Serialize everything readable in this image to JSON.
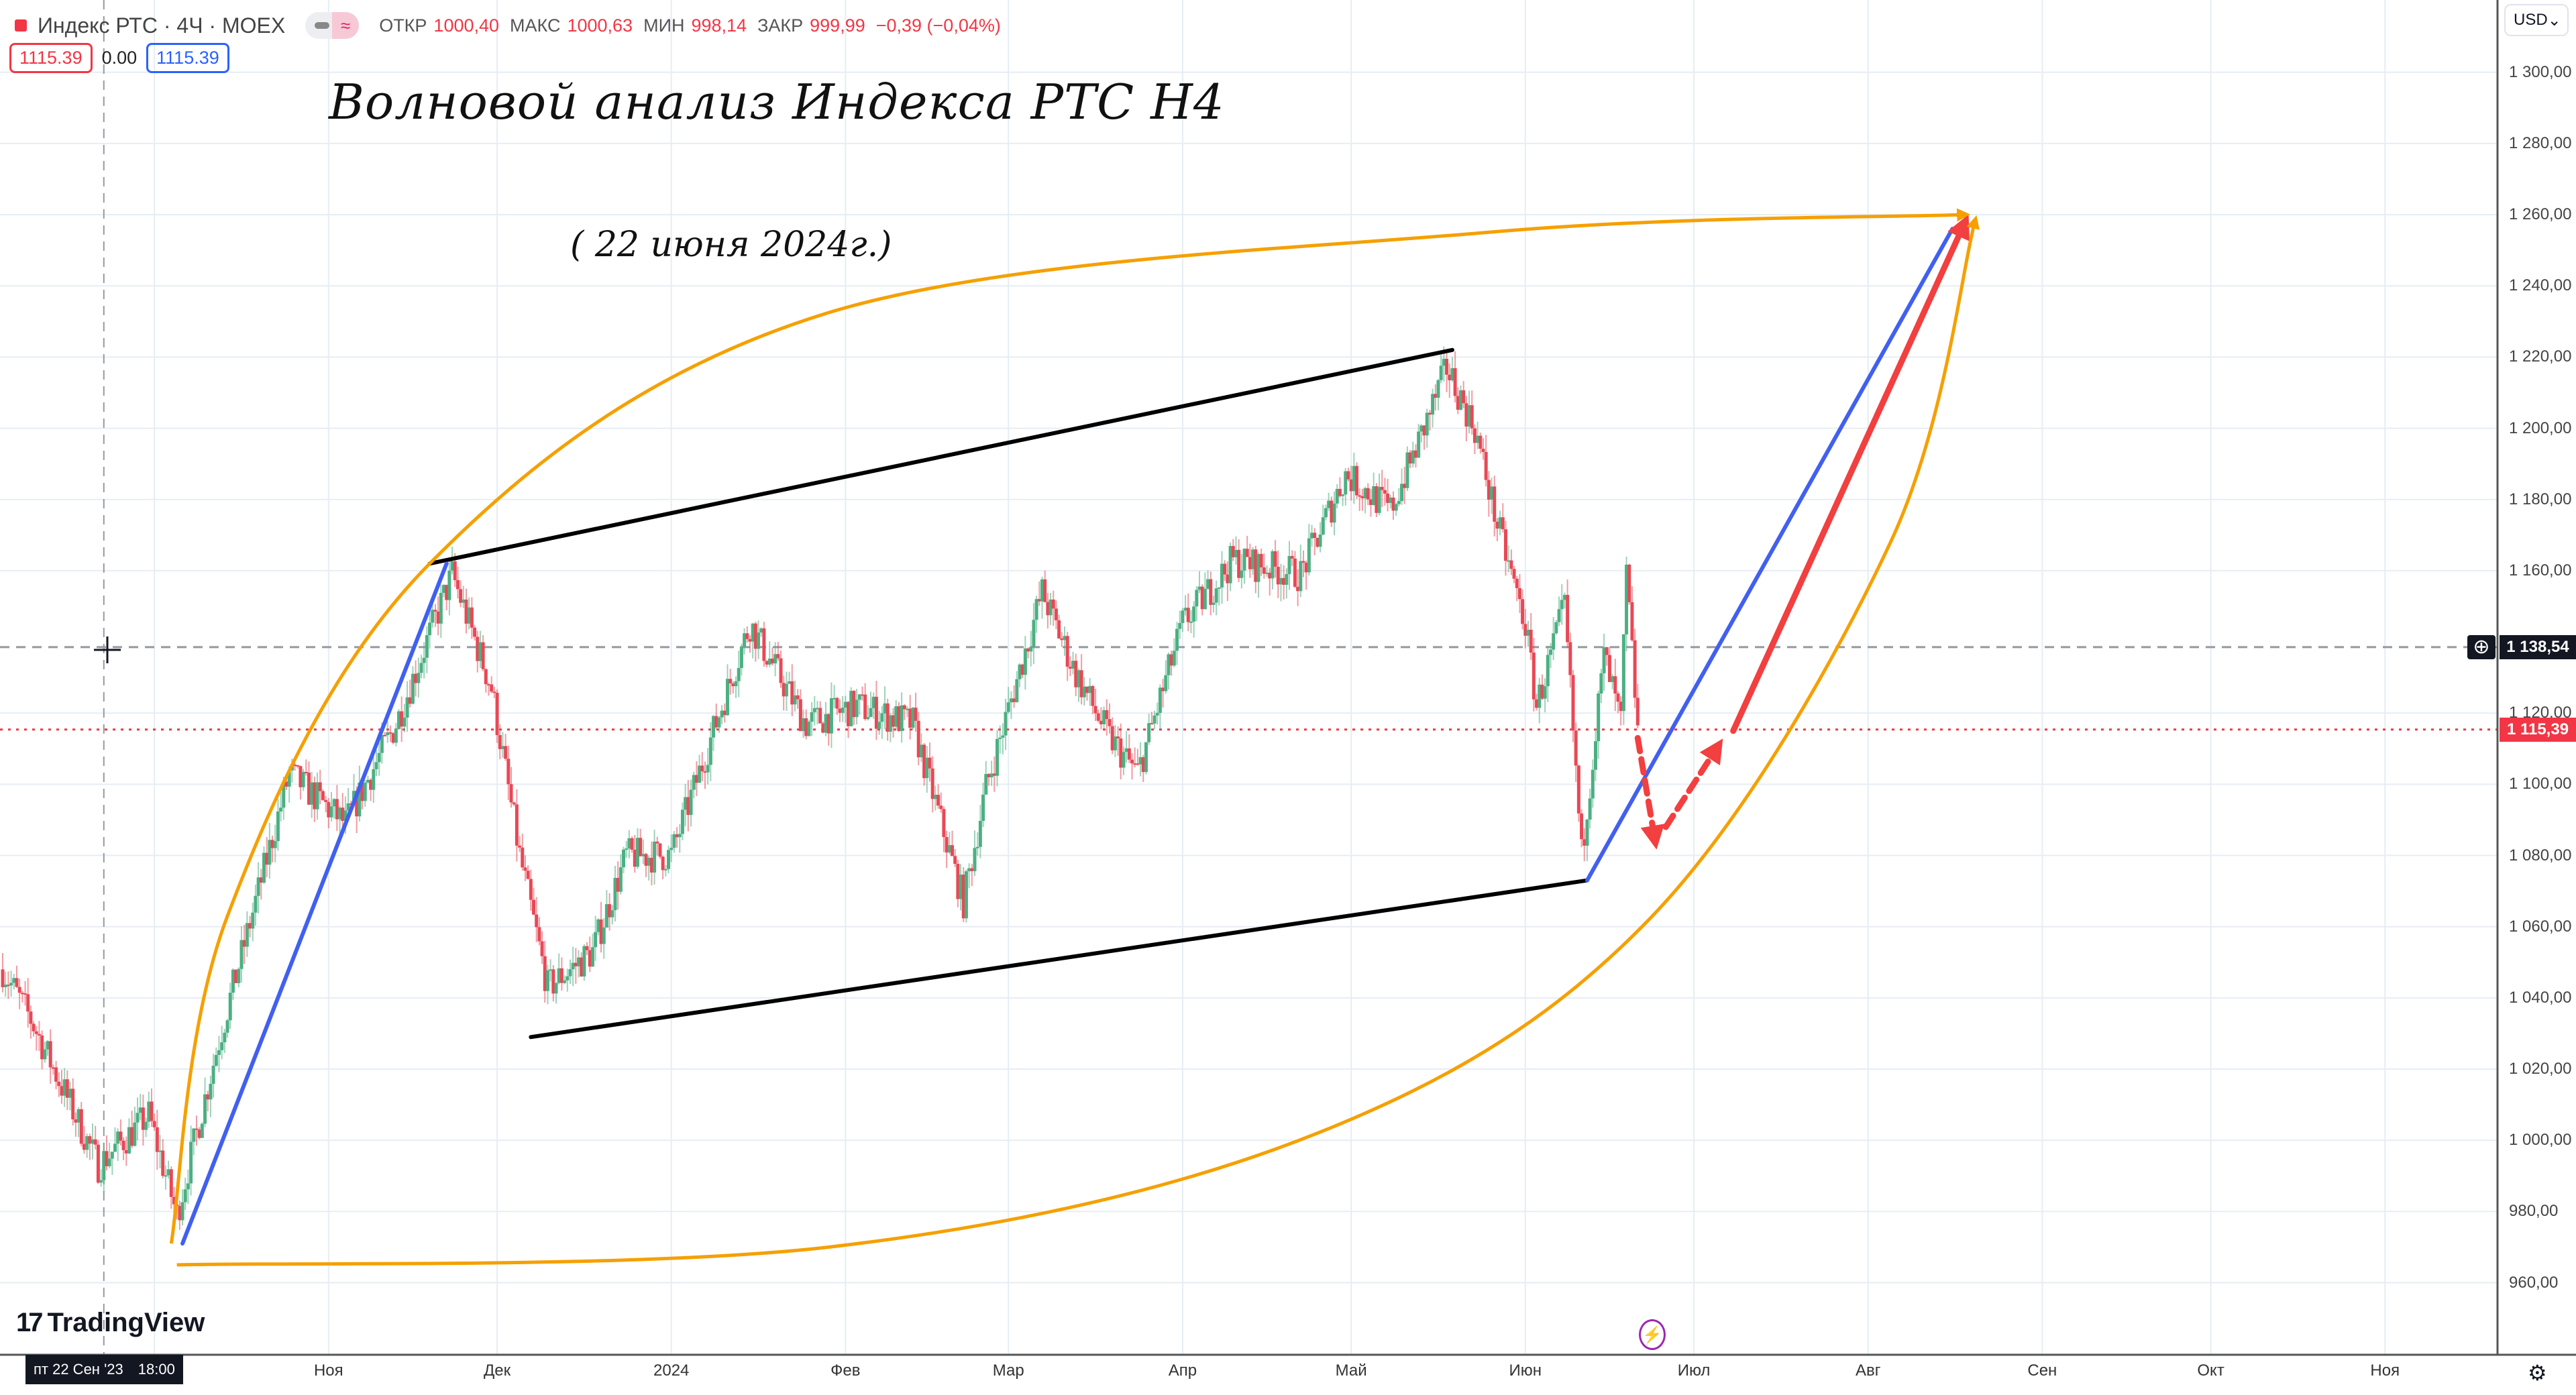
{
  "legend": {
    "symbol": "Индекс РТС · 4Ч · MOEX",
    "ohlc": [
      {
        "key": "ОТКР",
        "value": "1000,40"
      },
      {
        "key": "МАКС",
        "value": "1000,63"
      },
      {
        "key": "МИН",
        "value": "998,14"
      },
      {
        "key": "ЗАКР",
        "value": "999,99"
      }
    ],
    "change": "−0,39 (−0,04%)",
    "bid": "1115.39",
    "spread": "0.00",
    "ask": "1115.39",
    "wave_icon": "≈"
  },
  "annotations": {
    "title": "Волновой анализ Индекса РТС Н4",
    "date": "(  22 июня 2024г.)"
  },
  "currency": "USD",
  "logo": "TradingView",
  "crosshair": {
    "price_label": "1 138,54",
    "time_label_day": "пт 22 Сен '23",
    "time_label_time": "18:00"
  },
  "last_price_label": "1 115,39",
  "colors": {
    "up": "#4caf82",
    "down": "#e84855",
    "channel": "#000000",
    "impulse": "#4160f0",
    "target": "#f23f3f",
    "arc": "#f5a000",
    "last": "#f23645"
  },
  "chart_data": {
    "type": "candlestick",
    "y_ticks": [
      "1 300,00",
      "1 280,00",
      "1 260,00",
      "1 240,00",
      "1 220,00",
      "1 200,00",
      "1 180,00",
      "1 160,00",
      "1 120,00",
      "1 100,00",
      "1 080,00",
      "1 060,00",
      "1 040,00",
      "1 020,00",
      "1 000,00",
      "980,00",
      "960,00"
    ],
    "y_tick_values": [
      1300,
      1280,
      1260,
      1240,
      1220,
      1200,
      1180,
      1160,
      1120,
      1100,
      1080,
      1060,
      1040,
      1020,
      1000,
      980,
      960
    ],
    "x_ticks": [
      {
        "label": "Ноя",
        "date": "2023-11-01"
      },
      {
        "label": "Дек",
        "date": "2023-12-01"
      },
      {
        "label": "2024",
        "date": "2024-01-01"
      },
      {
        "label": "Фев",
        "date": "2024-02-01"
      },
      {
        "label": "Мар",
        "date": "2024-03-01"
      },
      {
        "label": "Апр",
        "date": "2024-04-01"
      },
      {
        "label": "Май",
        "date": "2024-05-01"
      },
      {
        "label": "Июн",
        "date": "2024-06-01"
      },
      {
        "label": "Июл",
        "date": "2024-07-01"
      },
      {
        "label": "Авг",
        "date": "2024-08-01"
      },
      {
        "label": "Сен",
        "date": "2024-09-01"
      },
      {
        "label": "Окт",
        "date": "2024-10-01"
      },
      {
        "label": "Ноя",
        "date": "2024-11-01"
      }
    ],
    "ylim": [
      950,
      1310
    ],
    "price_path": [
      [
        "2023-09-04",
        1048
      ],
      [
        "2023-09-09",
        1034
      ],
      [
        "2023-09-21",
        993
      ],
      [
        "2023-09-30",
        1007
      ],
      [
        "2023-10-05",
        979
      ],
      [
        "2023-10-12",
        1025
      ],
      [
        "2023-10-25",
        1103
      ],
      [
        "2023-11-04",
        1089
      ],
      [
        "2023-11-13",
        1117
      ],
      [
        "2023-11-23",
        1159
      ],
      [
        "2023-11-30",
        1127
      ],
      [
        "2023-12-05",
        1080
      ],
      [
        "2023-12-10",
        1043
      ],
      [
        "2023-12-18",
        1053
      ],
      [
        "2023-12-24",
        1080
      ],
      [
        "2024-01-01",
        1080
      ],
      [
        "2024-01-10",
        1122
      ],
      [
        "2024-01-15",
        1145
      ],
      [
        "2024-01-25",
        1117
      ],
      [
        "2024-02-03",
        1122
      ],
      [
        "2024-02-13",
        1117
      ],
      [
        "2024-02-22",
        1067
      ],
      [
        "2024-02-26",
        1099
      ],
      [
        "2024-03-07",
        1154
      ],
      [
        "2024-03-13",
        1131
      ],
      [
        "2024-03-19",
        1113
      ],
      [
        "2024-03-24",
        1103
      ],
      [
        "2024-04-01",
        1145
      ],
      [
        "2024-04-10",
        1163
      ],
      [
        "2024-04-22",
        1159
      ],
      [
        "2024-04-30",
        1187
      ],
      [
        "2024-05-08",
        1177
      ],
      [
        "2024-05-13",
        1196
      ],
      [
        "2024-05-18",
        1217
      ],
      [
        "2024-05-23",
        1200
      ],
      [
        "2024-05-27",
        1173
      ],
      [
        "2024-06-01",
        1145
      ],
      [
        "2024-06-03",
        1122
      ],
      [
        "2024-06-08",
        1150
      ],
      [
        "2024-06-11",
        1080
      ],
      [
        "2024-06-15",
        1136
      ],
      [
        "2024-06-18",
        1117
      ],
      [
        "2024-06-19",
        1159
      ],
      [
        "2024-06-21",
        1115
      ]
    ],
    "horizontal_lines": [
      {
        "price": 1138.54,
        "style": "dashed"
      },
      {
        "price": 1115.39,
        "style": "dotted"
      }
    ],
    "crosshair_date": "2023-09-22",
    "drawings": [
      {
        "type": "trendline",
        "color": "channel",
        "points": [
          [
            "2023-11-19",
            1162
          ],
          [
            "2024-05-19",
            1222
          ]
        ]
      },
      {
        "type": "trendline",
        "color": "channel",
        "points": [
          [
            "2023-12-07",
            1029
          ],
          [
            "2024-06-12",
            1073
          ]
        ]
      },
      {
        "type": "trendline",
        "color": "impulse",
        "points": [
          [
            "2023-10-06",
            971
          ],
          [
            "2023-11-22",
            1162
          ]
        ]
      },
      {
        "type": "trendline",
        "color": "impulse",
        "points": [
          [
            "2024-06-12",
            1073
          ],
          [
            "2024-08-16",
            1256
          ]
        ]
      },
      {
        "type": "arrow",
        "color": "target",
        "points": [
          [
            "2024-07-08",
            1115
          ],
          [
            "2024-08-18",
            1257
          ]
        ]
      },
      {
        "type": "dashed-arrow",
        "color": "target",
        "points": [
          [
            "2024-06-21",
            1113
          ],
          [
            "2024-06-24",
            1085
          ]
        ]
      },
      {
        "type": "dashed-arrow",
        "color": "target",
        "points": [
          [
            "2024-06-26",
            1088
          ],
          [
            "2024-07-05",
            1110
          ]
        ]
      },
      {
        "type": "arc",
        "color": "arc",
        "points": [
          [
            "2023-10-04",
            971
          ],
          [
            "2023-10-14",
            1063
          ],
          [
            "2023-11-19",
            1162
          ],
          [
            "2024-01-28",
            1232
          ],
          [
            "2024-05-25",
            1255
          ],
          [
            "2024-08-18",
            1260
          ]
        ]
      },
      {
        "type": "arc",
        "color": "arc",
        "points": [
          [
            "2023-10-05",
            965
          ],
          [
            "2024-01-29",
            970
          ],
          [
            "2024-04-25",
            1002
          ],
          [
            "2024-06-23",
            1062
          ],
          [
            "2024-08-05",
            1168
          ],
          [
            "2024-08-20",
            1258
          ]
        ]
      }
    ]
  }
}
